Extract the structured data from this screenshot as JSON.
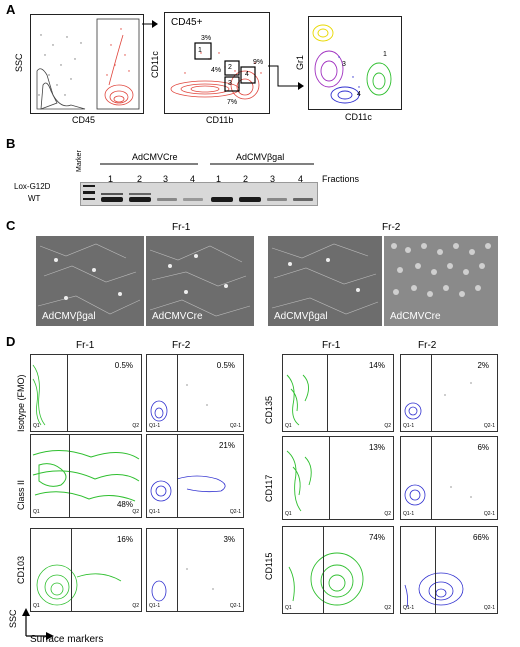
{
  "panel_letters": {
    "a": "A",
    "b": "B",
    "c": "C",
    "d": "D"
  },
  "panel_a": {
    "plot1": {
      "xlabel": "CD45",
      "ylabel": "SSC"
    },
    "plot2": {
      "title": "CD45+",
      "xlabel": "CD11b",
      "ylabel": "CD11c",
      "gates": [
        {
          "id": "1",
          "pct": "3%"
        },
        {
          "id": "2",
          "pct": "4%"
        },
        {
          "id": "3",
          "pct": "7%"
        },
        {
          "id": "4",
          "pct": "9%"
        }
      ]
    },
    "plot3": {
      "xlabel": "CD11c",
      "ylabel": "Gr1",
      "pop_labels": [
        "1",
        "3",
        "4"
      ]
    }
  },
  "panel_b": {
    "marker_label": "Marker",
    "groups": [
      "AdCMVCre",
      "AdCMVβgal"
    ],
    "lane_numbers": [
      "1",
      "2",
      "3",
      "4",
      "1",
      "2",
      "3",
      "4"
    ],
    "fractions_label": "Fractions",
    "band_labels": [
      "Lox-G12D",
      "WT"
    ]
  },
  "panel_c": {
    "group_titles": [
      "Fr-1",
      "Fr-2"
    ],
    "captions": [
      "AdCMVβgal",
      "AdCMVCre",
      "AdCMVβgal",
      "AdCMVCre"
    ]
  },
  "panel_d": {
    "column_titles": [
      "Fr-1",
      "Fr-2",
      "Fr-1",
      "Fr-2"
    ],
    "left_rows": [
      {
        "label": "Isotype (FMO)",
        "fr1": "0.5%",
        "fr2": "0.5%"
      },
      {
        "label": "Class II",
        "fr1": "48%",
        "fr2": "21%"
      },
      {
        "label": "CD103",
        "fr1": "16%",
        "fr2": "3%"
      }
    ],
    "right_rows": [
      {
        "label": "CD135",
        "fr1": "14%",
        "fr2": "2%"
      },
      {
        "label": "CD117",
        "fr1": "13%",
        "fr2": "6%"
      },
      {
        "label": "CD115",
        "fr1": "74%",
        "fr2": "66%"
      }
    ],
    "quadrant_labels": {
      "q1": "Q1",
      "q2": "Q2",
      "q1b": "Q1-1",
      "q2b": "Q2-1"
    },
    "axis_y": "SSC",
    "axis_x": "Surface markers"
  },
  "colors": {
    "red": "#e0453c",
    "green": "#2fbf2f",
    "blue": "#2f2fcf",
    "purple": "#a030c0",
    "yellow": "#e8d800"
  }
}
